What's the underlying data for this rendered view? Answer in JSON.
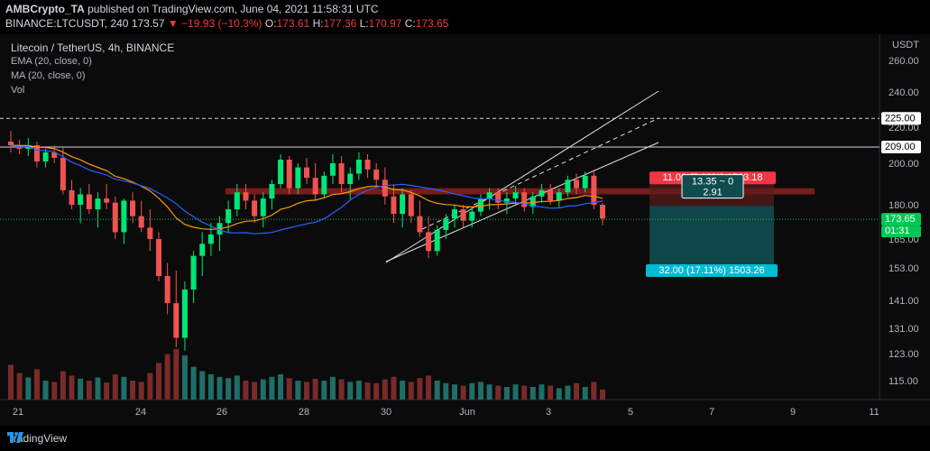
{
  "header": {
    "line1": {
      "author": "AMBCrypto_TA",
      "text": "published on TradingView.com, June 04, 2021 11:58:31 UTC"
    },
    "line2": {
      "symbol": "BINANCE:LTCUSDT, 240",
      "last": "173.57",
      "change": "−19.93 (−10.3%)",
      "o_label": "O:",
      "o": "173.61",
      "h_label": "H:",
      "h": "177.36",
      "l_label": "L:",
      "l": "170.97",
      "c_label": "C:",
      "c": "173.65"
    }
  },
  "legend": {
    "title": "Litecoin / TetherUS, 4h, BINANCE",
    "ema": "EMA (20, close, 0)",
    "ma": "MA (20, close, 0)",
    "vol": "Vol"
  },
  "currency_badge": "USDT",
  "price_tag": {
    "price": "173.65",
    "countdown": "01:31"
  },
  "level_labels": [
    "225.00",
    "209.00"
  ],
  "position_tool": {
    "target_label": "11.00 (5.88%) 1503.18",
    "stop_label": "32.00 (17.11%) 1503.26",
    "center_label_line1": "13.35 ~ 0",
    "center_label_line2": "2.91"
  },
  "footer": {
    "brand": "TradingView"
  },
  "colors": {
    "up": "#26a69a",
    "up_bright": "#00e676",
    "down": "#ef5350",
    "down_dark": "#b71c1c",
    "ema": "#ff9800",
    "ma": "#2962ff",
    "zone": "#8b1e1e",
    "target": "#f23645",
    "stop": "#00bcd4",
    "price": "#00c853"
  },
  "chart_data": {
    "type": "candlestick",
    "y_axis_ticks": [
      260,
      240,
      220,
      200,
      180,
      165,
      153,
      141,
      131,
      123,
      115
    ],
    "x_axis_ticks": [
      "21",
      "24",
      "26",
      "28",
      "30",
      "Jun",
      "3",
      "5",
      "7",
      "9",
      "11"
    ],
    "horizontal_levels": [
      225.0,
      209.0
    ],
    "resistance_zone": [
      185,
      188
    ],
    "candles_ohlc": [
      [
        212,
        218,
        206,
        210
      ],
      [
        210,
        213,
        205,
        208
      ],
      [
        208,
        214,
        204,
        210
      ],
      [
        210,
        212,
        198,
        201
      ],
      [
        201,
        208,
        198,
        206
      ],
      [
        206,
        210,
        200,
        203
      ],
      [
        203,
        209,
        185,
        187
      ],
      [
        187,
        192,
        178,
        180
      ],
      [
        180,
        188,
        172,
        185
      ],
      [
        185,
        190,
        176,
        178
      ],
      [
        178,
        186,
        170,
        183
      ],
      [
        183,
        190,
        178,
        181
      ],
      [
        181,
        184,
        165,
        168
      ],
      [
        168,
        183,
        163,
        182
      ],
      [
        182,
        186,
        172,
        175
      ],
      [
        175,
        182,
        168,
        170
      ],
      [
        170,
        178,
        160,
        165
      ],
      [
        165,
        168,
        148,
        150
      ],
      [
        150,
        155,
        136,
        140
      ],
      [
        140,
        152,
        125,
        128
      ],
      [
        128,
        148,
        124,
        145
      ],
      [
        145,
        160,
        140,
        158
      ],
      [
        158,
        168,
        150,
        163
      ],
      [
        163,
        172,
        158,
        167
      ],
      [
        167,
        175,
        160,
        172
      ],
      [
        172,
        182,
        168,
        178
      ],
      [
        178,
        190,
        175,
        186
      ],
      [
        186,
        190,
        178,
        182
      ],
      [
        182,
        185,
        172,
        175
      ],
      [
        175,
        186,
        170,
        183
      ],
      [
        183,
        192,
        178,
        190
      ],
      [
        190,
        205,
        188,
        202
      ],
      [
        202,
        204,
        185,
        188
      ],
      [
        188,
        200,
        185,
        198
      ],
      [
        198,
        203,
        190,
        193
      ],
      [
        193,
        200,
        182,
        185
      ],
      [
        185,
        196,
        183,
        194
      ],
      [
        194,
        205,
        190,
        200
      ],
      [
        200,
        204,
        186,
        190
      ],
      [
        190,
        198,
        182,
        195
      ],
      [
        195,
        206,
        192,
        202
      ],
      [
        202,
        205,
        193,
        197
      ],
      [
        197,
        200,
        188,
        192
      ],
      [
        192,
        198,
        180,
        184
      ],
      [
        184,
        190,
        172,
        176
      ],
      [
        176,
        188,
        170,
        185
      ],
      [
        185,
        187,
        172,
        175
      ],
      [
        175,
        182,
        166,
        168
      ],
      [
        168,
        175,
        157,
        160
      ],
      [
        160,
        171,
        158,
        169
      ],
      [
        169,
        176,
        165,
        174
      ],
      [
        174,
        180,
        170,
        178
      ],
      [
        178,
        180,
        170,
        173
      ],
      [
        173,
        179,
        170,
        177
      ],
      [
        177,
        185,
        175,
        183
      ],
      [
        183,
        188,
        178,
        186
      ],
      [
        186,
        188,
        178,
        181
      ],
      [
        181,
        186,
        176,
        183
      ],
      [
        183,
        189,
        180,
        186
      ],
      [
        186,
        188,
        177,
        179
      ],
      [
        179,
        186,
        176,
        184
      ],
      [
        184,
        190,
        181,
        187
      ],
      [
        187,
        190,
        180,
        182
      ],
      [
        182,
        188,
        179,
        186
      ],
      [
        186,
        194,
        184,
        192
      ],
      [
        192,
        195,
        185,
        188
      ],
      [
        188,
        196,
        186,
        194
      ],
      [
        194,
        197,
        178,
        180
      ],
      [
        180,
        181,
        171,
        174
      ]
    ]
  }
}
